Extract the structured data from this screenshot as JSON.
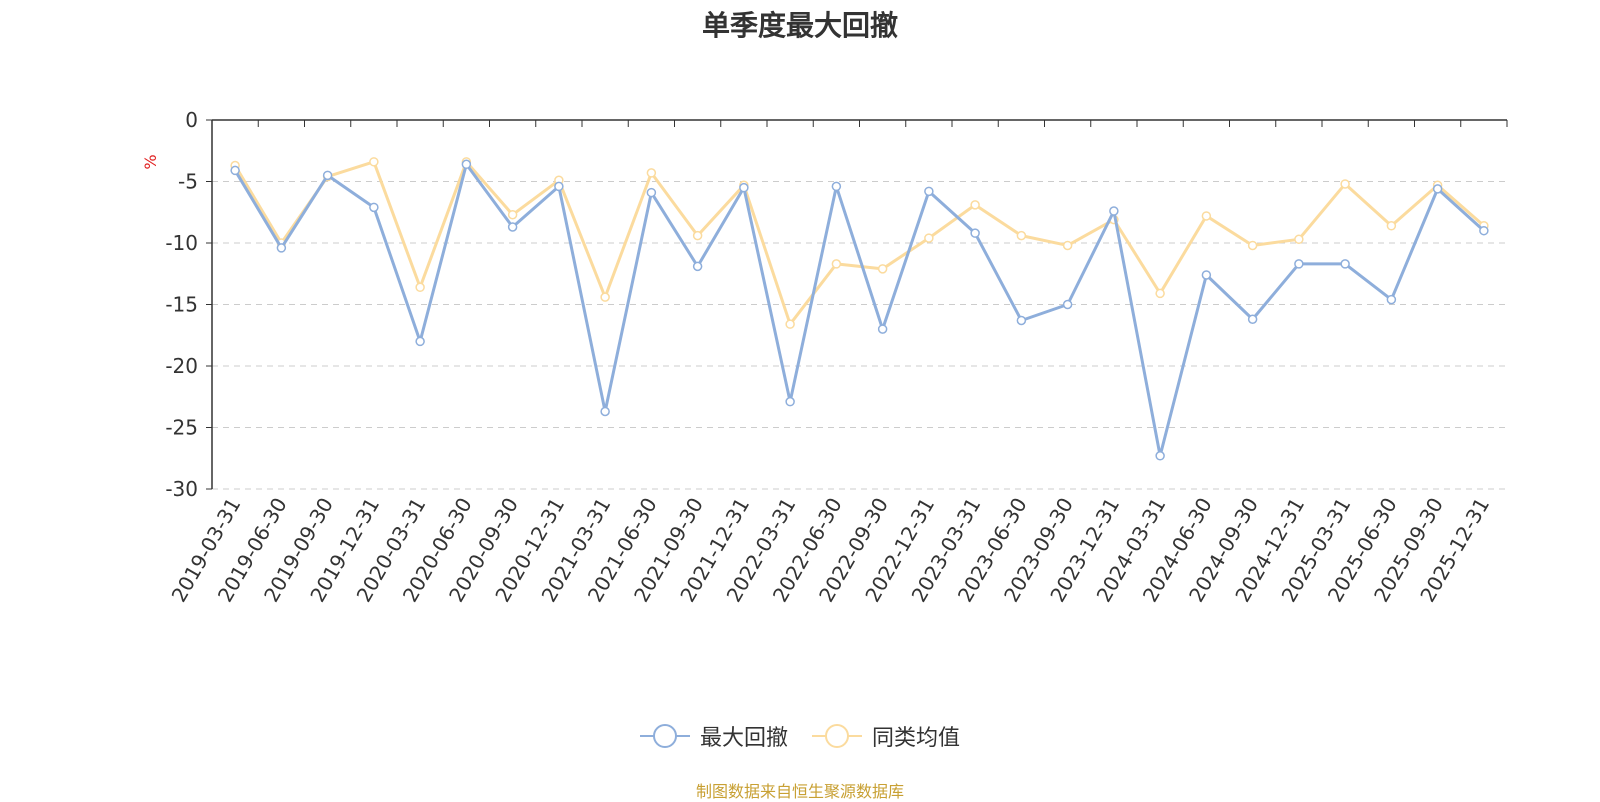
{
  "chart_data": {
    "type": "line",
    "title": "单季度最大回撤",
    "ylabel": "%",
    "ylim": [
      -30,
      0
    ],
    "yticks": [
      0,
      -5,
      -10,
      -15,
      -20,
      -25,
      -30
    ],
    "grid": true,
    "legend_position": "bottom",
    "categories": [
      "2019-03-31",
      "2019-06-30",
      "2019-09-30",
      "2019-12-31",
      "2020-03-31",
      "2020-06-30",
      "2020-09-30",
      "2020-12-31",
      "2021-03-31",
      "2021-06-30",
      "2021-09-30",
      "2021-12-31",
      "2022-03-31",
      "2022-06-30",
      "2022-09-30",
      "2022-12-31",
      "2023-03-31",
      "2023-06-30",
      "2023-09-30",
      "2023-12-31",
      "2024-03-31",
      "2024-06-30",
      "2024-09-30",
      "2024-12-31",
      "2025-03-31",
      "2025-06-30",
      "2025-09-30",
      "2025-12-31"
    ],
    "series": [
      {
        "name": "最大回撤",
        "color": "#8eaedb",
        "values": [
          -4.1,
          -10.4,
          -4.5,
          -7.1,
          -18.0,
          -3.6,
          -8.7,
          -5.4,
          -23.7,
          -5.9,
          -11.9,
          -5.5,
          -22.9,
          -5.4,
          -17.0,
          -5.8,
          -9.2,
          -16.3,
          -15.0,
          -7.4,
          -27.3,
          -12.6,
          -16.2,
          -11.7,
          -11.7,
          -14.6,
          -5.6,
          -9.0
        ]
      },
      {
        "name": "同类均值",
        "color": "#fbdb9e",
        "values": [
          -3.7,
          -10.0,
          -4.6,
          -3.4,
          -13.6,
          -3.4,
          -7.7,
          -4.9,
          -14.4,
          -4.3,
          -9.4,
          -5.3,
          -16.6,
          -11.7,
          -12.1,
          -9.6,
          -6.9,
          -9.4,
          -10.2,
          -8.1,
          -14.1,
          -7.8,
          -10.2,
          -9.7,
          -5.2,
          -8.6,
          -5.3,
          -8.6
        ]
      }
    ],
    "source": "制图数据来自恒生聚源数据库"
  }
}
